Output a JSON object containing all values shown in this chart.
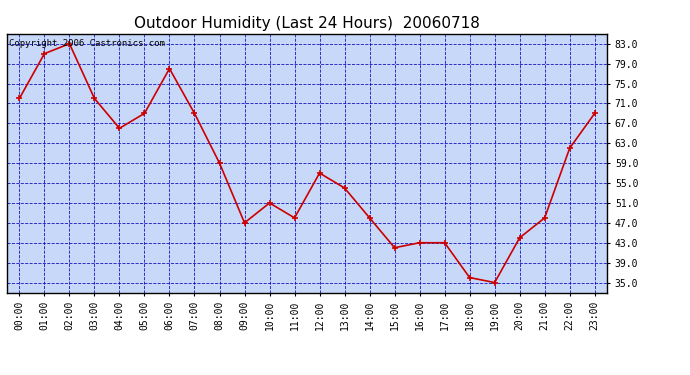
{
  "title": "Outdoor Humidity (Last 24 Hours)  20060718",
  "copyright": "Copyright 2006 Castronics.com",
  "x_labels": [
    "00:00",
    "01:00",
    "02:00",
    "03:00",
    "04:00",
    "05:00",
    "06:00",
    "07:00",
    "08:00",
    "09:00",
    "10:00",
    "11:00",
    "12:00",
    "13:00",
    "14:00",
    "15:00",
    "16:00",
    "17:00",
    "18:00",
    "19:00",
    "20:00",
    "21:00",
    "22:00",
    "23:00"
  ],
  "y_values": [
    72,
    81,
    83,
    72,
    66,
    69,
    78,
    69,
    59,
    47,
    51,
    48,
    57,
    54,
    48,
    42,
    43,
    43,
    36,
    35,
    44,
    48,
    62,
    69
  ],
  "y_ticks": [
    35.0,
    39.0,
    43.0,
    47.0,
    51.0,
    55.0,
    59.0,
    63.0,
    67.0,
    71.0,
    75.0,
    79.0,
    83.0
  ],
  "ylim": [
    33,
    85
  ],
  "line_color": "#cc0000",
  "marker_color": "#cc0000",
  "bg_color": "#c8d8f8",
  "plot_bg_color": "#c8d8f8",
  "grid_color": "#0000bb",
  "title_fontsize": 11,
  "copyright_fontsize": 6.5,
  "tick_fontsize": 7,
  "ytick_fontsize": 7
}
